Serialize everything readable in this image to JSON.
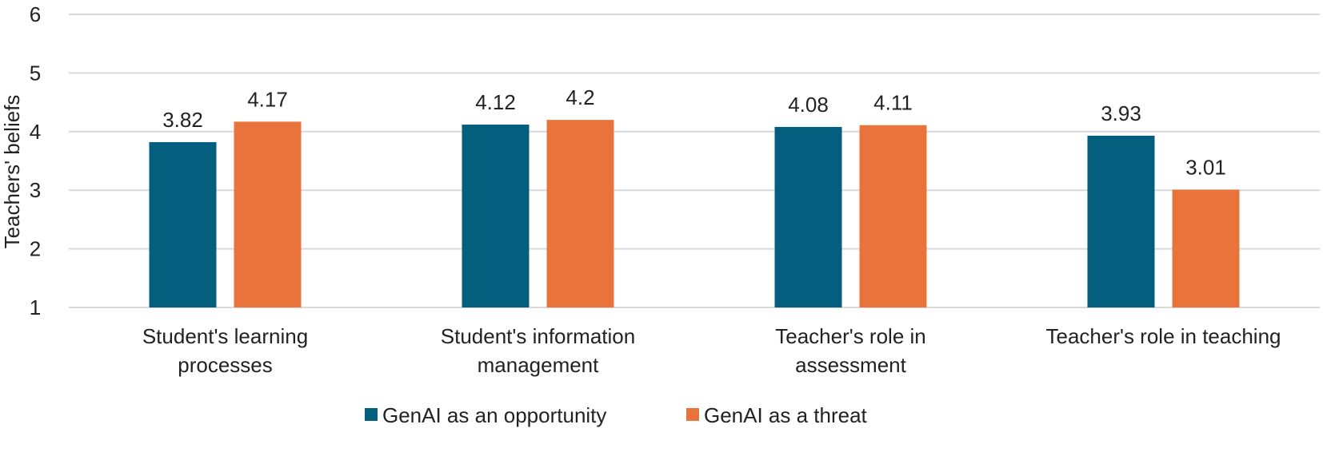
{
  "chart_data": {
    "type": "bar",
    "title": "",
    "xlabel": "",
    "ylabel": "Teachers' beliefs",
    "ylim": [
      1,
      6
    ],
    "yticks": [
      1,
      2,
      3,
      4,
      5,
      6
    ],
    "grid": true,
    "legend_position": "bottom-center",
    "categories": [
      [
        "Student's learning",
        "processes"
      ],
      [
        "Student's information",
        "management"
      ],
      [
        "Teacher's role in",
        "assessment"
      ],
      [
        "Teacher's role in teaching"
      ]
    ],
    "series": [
      {
        "name": "GenAI as an opportunity",
        "color": "#045f7f",
        "values": [
          3.82,
          4.12,
          4.08,
          3.93
        ]
      },
      {
        "name": "GenAI as a threat",
        "color": "#e8743b",
        "values": [
          4.17,
          4.2,
          4.11,
          3.01
        ]
      }
    ],
    "gridline_color": "#d9d9d9"
  }
}
